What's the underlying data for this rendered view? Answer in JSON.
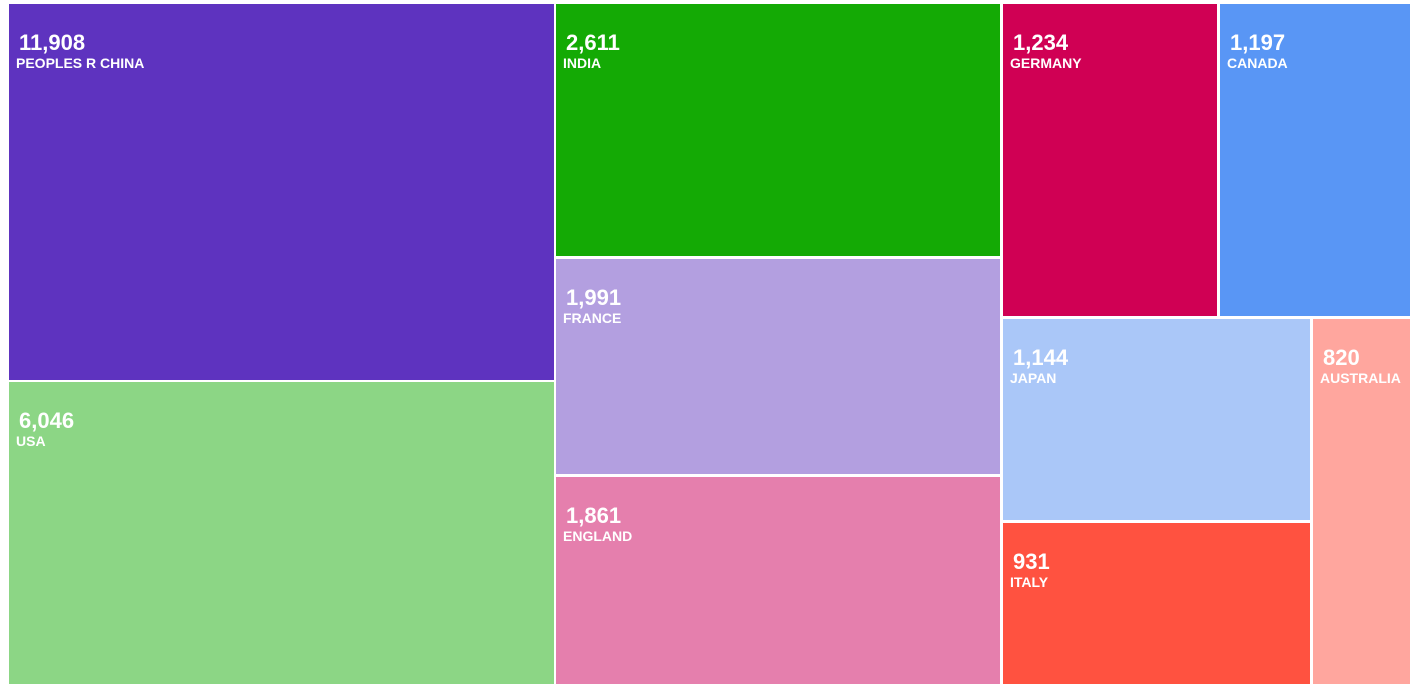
{
  "chart_data": {
    "type": "treemap",
    "title": "",
    "series": [
      {
        "label": "PEOPLES R CHINA",
        "value": 11908,
        "display": "11,908",
        "color": "#5e33bf"
      },
      {
        "label": "USA",
        "value": 6046,
        "display": "6,046",
        "color": "#8cd685"
      },
      {
        "label": "INDIA",
        "value": 2611,
        "display": "2,611",
        "color": "#14aa05"
      },
      {
        "label": "FRANCE",
        "value": 1991,
        "display": "1,991",
        "color": "#b39fe0"
      },
      {
        "label": "ENGLAND",
        "value": 1861,
        "display": "1,861",
        "color": "#e57fad"
      },
      {
        "label": "GERMANY",
        "value": 1234,
        "display": "1,234",
        "color": "#d00054"
      },
      {
        "label": "CANADA",
        "value": 1197,
        "display": "1,197",
        "color": "#5996f5"
      },
      {
        "label": "JAPAN",
        "value": 1144,
        "display": "1,144",
        "color": "#aac7f8"
      },
      {
        "label": "ITALY",
        "value": 931,
        "display": "931",
        "color": "#ff5240"
      },
      {
        "label": "AUSTRALIA",
        "value": 820,
        "display": "820",
        "color": "#ffa69e"
      }
    ]
  }
}
